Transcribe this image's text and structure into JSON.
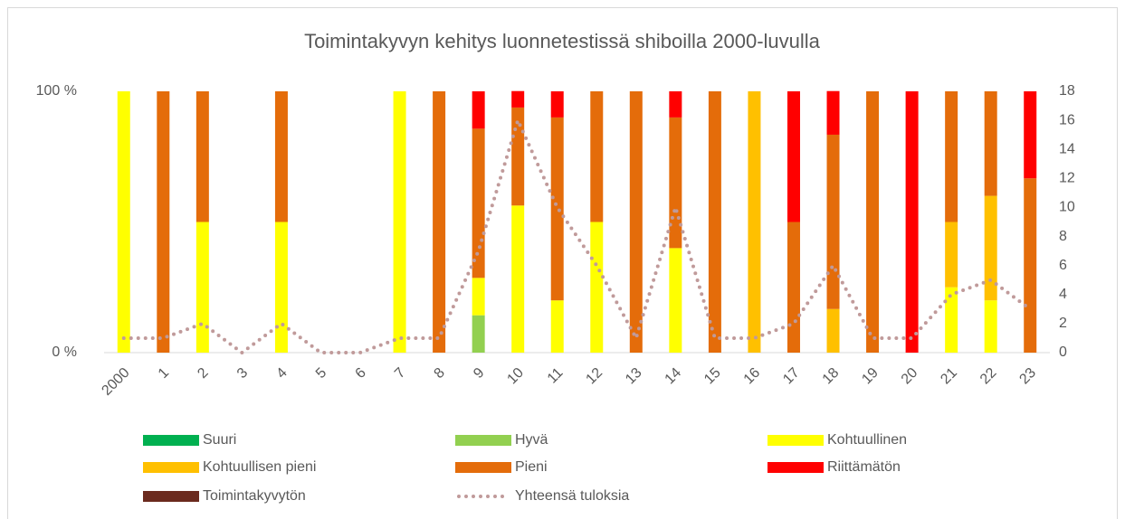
{
  "chart_data": {
    "type": "bar",
    "stacked": true,
    "title": "Toimintakyvyn kehitys luonnetestissä shiboilla 2000-luvulla",
    "categories": [
      "2000",
      "1",
      "2",
      "3",
      "4",
      "5",
      "6",
      "7",
      "8",
      "9",
      "10",
      "11",
      "12",
      "13",
      "14",
      "15",
      "16",
      "17",
      "18",
      "19",
      "20",
      "21",
      "22",
      "23"
    ],
    "ylim": [
      0,
      100
    ],
    "yticks": [
      {
        "value": 0,
        "label": "0 %"
      },
      {
        "value": 100,
        "label": "100 %"
      }
    ],
    "y2lim": [
      0,
      18
    ],
    "y2ticks": [
      0,
      2,
      4,
      6,
      8,
      10,
      12,
      14,
      16,
      18
    ],
    "series": [
      {
        "name": "Suuri",
        "color": "#00b050",
        "values": [
          0,
          0,
          0,
          0,
          0,
          0,
          0,
          0,
          0,
          0,
          0,
          0,
          0,
          0,
          0,
          0,
          0,
          0,
          0,
          0,
          0,
          0,
          0,
          0
        ]
      },
      {
        "name": "Hyvä",
        "color": "#92d050",
        "values": [
          0,
          0,
          0,
          0,
          0,
          0,
          0,
          0,
          0,
          14.3,
          0,
          0,
          0,
          0,
          0,
          0,
          0,
          0,
          0,
          0,
          0,
          0,
          0,
          0
        ]
      },
      {
        "name": "Kohtuullinen",
        "color": "#ffff00",
        "values": [
          100,
          0,
          50,
          0,
          50,
          0,
          0,
          100,
          0,
          14.3,
          56.3,
          20,
          50,
          0,
          40,
          0,
          0,
          0,
          0,
          0,
          0,
          25,
          20,
          0
        ]
      },
      {
        "name": "Kohtuullisen pieni",
        "color": "#ffc000",
        "values": [
          0,
          0,
          0,
          0,
          0,
          0,
          0,
          0,
          0,
          0,
          0,
          0,
          0,
          0,
          0,
          0,
          100,
          0,
          16.7,
          0,
          0,
          25,
          40,
          0
        ]
      },
      {
        "name": "Pieni",
        "color": "#e46c0a",
        "values": [
          0,
          100,
          50,
          0,
          50,
          0,
          0,
          0,
          100,
          57.1,
          37.5,
          70,
          50,
          100,
          50,
          100,
          0,
          50,
          66.7,
          100,
          0,
          50,
          40,
          66.7
        ]
      },
      {
        "name": "Riittämätön",
        "color": "#ff0000",
        "values": [
          0,
          0,
          0,
          0,
          0,
          0,
          0,
          0,
          0,
          14.3,
          6.3,
          10,
          0,
          0,
          10,
          0,
          0,
          50,
          16.7,
          0,
          100,
          0,
          0,
          33.3
        ]
      },
      {
        "name": "Toimintakyvytön",
        "color": "#6b2a1e",
        "values": [
          0,
          0,
          0,
          0,
          0,
          0,
          0,
          0,
          0,
          0,
          0,
          0,
          0,
          0,
          0,
          0,
          0,
          0,
          0,
          0,
          0,
          0,
          0,
          0
        ]
      },
      {
        "name": "Yhteensä tuloksia",
        "color": "#c09a9a",
        "type": "line",
        "axis": "y2",
        "values": [
          1,
          1,
          2,
          0,
          2,
          0,
          0,
          1,
          1,
          7,
          16,
          10,
          6,
          1,
          10,
          1,
          1,
          2,
          6,
          1,
          1,
          4,
          5,
          3
        ]
      }
    ]
  }
}
